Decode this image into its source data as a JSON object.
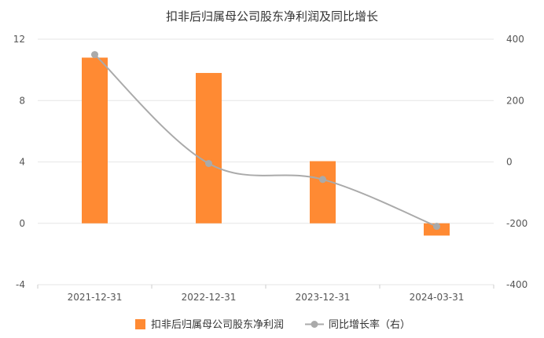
{
  "chart_data": {
    "type": "bar+line",
    "title": "扣非后归属母公司股东净利润及同比增长",
    "categories": [
      "2021-12-31",
      "2022-12-31",
      "2023-12-31",
      "2024-03-31"
    ],
    "series": [
      {
        "name": "扣非后归属母公司股东净利润",
        "type": "bar",
        "axis": "left",
        "color": "#FF8A33",
        "values": [
          10.8,
          9.8,
          4.05,
          -0.8
        ]
      },
      {
        "name": "同比增长率（右）",
        "type": "line",
        "axis": "right",
        "color": "#AAAAAA",
        "values": [
          350,
          -5,
          -57,
          -210
        ]
      }
    ],
    "y_left": {
      "min": -4,
      "max": 12,
      "ticks": [
        12,
        8,
        4,
        0,
        -4
      ]
    },
    "y_right": {
      "min": -400,
      "max": 400,
      "ticks": [
        400,
        200,
        0,
        -200,
        -400
      ]
    },
    "grid": true,
    "legend_position": "bottom"
  }
}
